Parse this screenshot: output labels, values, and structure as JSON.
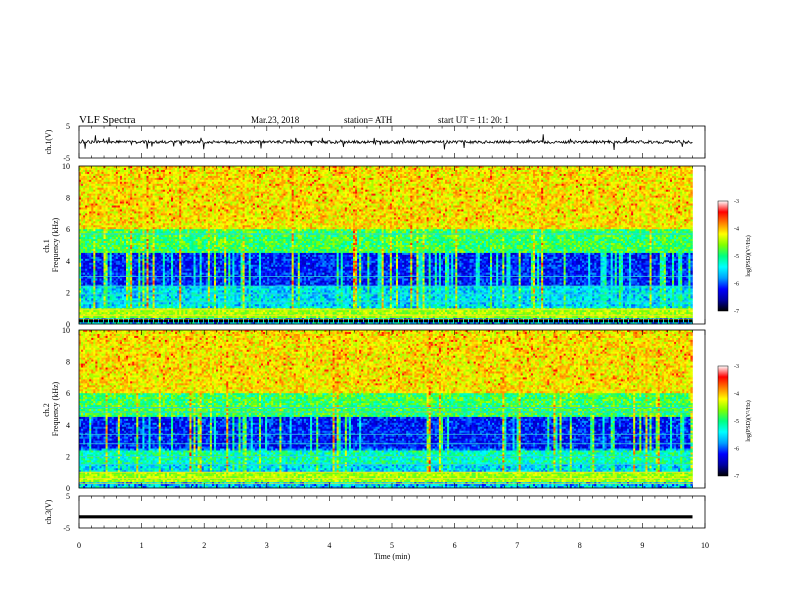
{
  "header": {
    "title": "VLF  Spectra",
    "date": "Mar.23, 2018",
    "station": "station= ATH",
    "start": "start  UT  =     11: 20: 1"
  },
  "chart_data": [
    {
      "type": "line",
      "name": "ch1-waveform",
      "ylabel": "ch.1(V)",
      "ylim": [
        -5,
        5
      ],
      "y_ticks": [
        "5",
        "-5"
      ],
      "x_range_min": [
        0,
        9.8
      ],
      "signal": "noisy waveform near y = 0 with frequent short spikes"
    },
    {
      "type": "heatmap",
      "name": "ch1-spectrogram",
      "ylabel": "ch.1\nFrequency  (kHz)",
      "ylim": [
        0,
        10
      ],
      "y_ticks": [
        "0",
        "2",
        "4",
        "6",
        "8",
        "10"
      ],
      "x_range_min": [
        0,
        9.8
      ],
      "colorbar": {
        "label": "log(PSD)(V²/Hz)",
        "range": [
          -7,
          -3
        ],
        "ticks": [
          "-3",
          "-4",
          "-5",
          "-6",
          "-7"
        ],
        "colors": [
          "#000000",
          "#0000a0",
          "#0000ff",
          "#00a0ff",
          "#00ffff",
          "#00ff80",
          "#80ff00",
          "#ffff00",
          "#ff8000",
          "#ff0000",
          "#ffffff"
        ]
      }
    },
    {
      "type": "heatmap",
      "name": "ch2-spectrogram",
      "ylabel": "ch.2\nFrequency  (kHz)",
      "ylim": [
        0,
        10
      ],
      "y_ticks": [
        "0",
        "2",
        "4",
        "6",
        "8",
        "10"
      ],
      "x_range_min": [
        0,
        9.8
      ],
      "colorbar": {
        "label": "log(PSD)(V²/Hz)",
        "range": [
          -7,
          -3
        ],
        "ticks": [
          "-3",
          "-4",
          "-5",
          "-6",
          "-7"
        ],
        "colors": [
          "#000000",
          "#0000a0",
          "#0000ff",
          "#00a0ff",
          "#00ffff",
          "#00ff80",
          "#80ff00",
          "#ffff00",
          "#ff8000",
          "#ff0000",
          "#ffffff"
        ]
      }
    },
    {
      "type": "line",
      "name": "ch3-waveform",
      "ylabel": "ch.3(V)",
      "ylim": [
        -5,
        5
      ],
      "y_ticks": [
        "5",
        "-5"
      ],
      "x_range_min": [
        0,
        9.8
      ],
      "signal": "flat thick trace at about y = -1.5"
    }
  ],
  "x_axis": {
    "label": "Time  (min)",
    "range": [
      0,
      10
    ],
    "ticks": [
      "0",
      "1",
      "2",
      "3",
      "4",
      "5",
      "6",
      "7",
      "8",
      "9",
      "10"
    ]
  }
}
